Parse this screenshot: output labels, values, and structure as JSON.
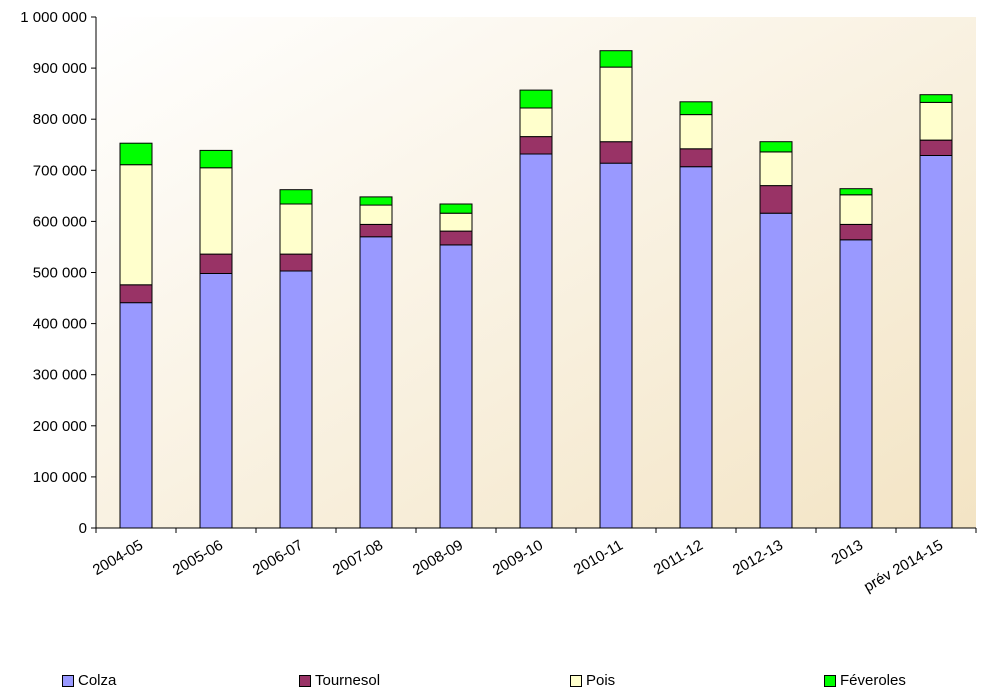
{
  "chart_data": {
    "type": "bar",
    "stacked": true,
    "categories": [
      "2004-05",
      "2005-06",
      "2006-07",
      "2007-08",
      "2008-09",
      "2009-10",
      "2010-11",
      "2011-12",
      "2012-13",
      "2013",
      "prév 2014-15"
    ],
    "series": [
      {
        "name": "Colza",
        "color": "#9999ff",
        "values": [
          441000,
          498000,
          503000,
          570000,
          554000,
          732000,
          714000,
          707000,
          616000,
          564000,
          729000
        ]
      },
      {
        "name": "Tournesol",
        "color": "#993366",
        "values": [
          35000,
          38000,
          33000,
          24000,
          27000,
          34000,
          42000,
          35000,
          54000,
          30000,
          30000
        ]
      },
      {
        "name": "Pois",
        "color": "#ffffcc",
        "values": [
          235000,
          169000,
          98000,
          38000,
          35000,
          56000,
          146000,
          67000,
          66000,
          58000,
          74000
        ]
      },
      {
        "name": "Féveroles",
        "color": "#00ff00",
        "values": [
          42000,
          34000,
          28000,
          16000,
          18000,
          35000,
          32000,
          25000,
          20000,
          12000,
          15000
        ]
      }
    ],
    "y_ticks": [
      "0",
      "100 000",
      "200 000",
      "300 000",
      "400 000",
      "500 000",
      "600 000",
      "700 000",
      "800 000",
      "900 000",
      "1 000 000"
    ],
    "ylim": [
      0,
      1000000
    ],
    "legend_position": "bottom",
    "grid": false,
    "plot_background": "#f7ecd6"
  }
}
